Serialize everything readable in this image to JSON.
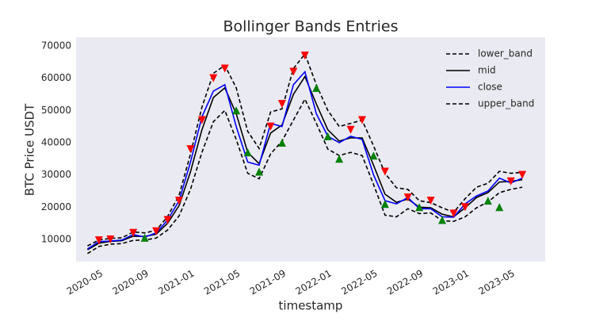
{
  "chart_data": {
    "type": "line",
    "title": "Bollinger Bands Entries",
    "xlabel": "timestamp",
    "ylabel": "BTC Price USDT",
    "x": [
      "2020-04",
      "2020-05",
      "2020-06",
      "2020-07",
      "2020-08",
      "2020-09",
      "2020-10",
      "2020-11",
      "2020-12",
      "2021-01",
      "2021-02",
      "2021-03",
      "2021-04",
      "2021-05",
      "2021-06",
      "2021-07",
      "2021-08",
      "2021-09",
      "2021-10",
      "2021-11",
      "2021-12",
      "2022-01",
      "2022-02",
      "2022-03",
      "2022-04",
      "2022-05",
      "2022-06",
      "2022-07",
      "2022-08",
      "2022-09",
      "2022-10",
      "2022-11",
      "2022-12",
      "2023-01",
      "2023-02",
      "2023-03",
      "2023-04",
      "2023-05",
      "2023-06"
    ],
    "series": [
      {
        "name": "lower_band",
        "color": "#000000",
        "dashed": true,
        "values": [
          5600,
          7800,
          8500,
          8700,
          9700,
          9800,
          10400,
          12900,
          17300,
          25500,
          37000,
          46500,
          50000,
          41000,
          30500,
          28800,
          36500,
          40500,
          47000,
          53500,
          46000,
          38000,
          36000,
          37000,
          36000,
          27000,
          17500,
          17000,
          19500,
          18000,
          18200,
          15800,
          15600,
          17000,
          19800,
          21600,
          24500,
          25500,
          26200
        ]
      },
      {
        "name": "mid",
        "color": "#000000",
        "dashed": false,
        "values": [
          6800,
          8800,
          9400,
          9600,
          11000,
          10900,
          11600,
          15000,
          20500,
          31000,
          44000,
          54000,
          57000,
          49000,
          37000,
          33500,
          43000,
          45500,
          55000,
          60500,
          52000,
          44000,
          40500,
          41500,
          41500,
          33000,
          24000,
          21500,
          22500,
          20000,
          19800,
          17800,
          17000,
          19800,
          23000,
          24500,
          27800,
          28000,
          28500
        ]
      },
      {
        "name": "close",
        "color": "#0000ff",
        "dashed": false,
        "values": [
          7000,
          9300,
          9500,
          9800,
          11500,
          10700,
          12000,
          16000,
          22000,
          34000,
          48000,
          56000,
          58000,
          45000,
          34000,
          33000,
          46000,
          45000,
          58000,
          62000,
          49000,
          42000,
          40000,
          42000,
          41000,
          30000,
          22000,
          21000,
          23000,
          19500,
          19500,
          17000,
          16900,
          21000,
          23500,
          25000,
          29000,
          27500,
          29000
        ]
      },
      {
        "name": "upper_band",
        "color": "#000000",
        "dashed": true,
        "values": [
          8000,
          9800,
          10300,
          10500,
          12300,
          12000,
          12800,
          17100,
          23700,
          36500,
          51000,
          61500,
          64000,
          57000,
          43500,
          38200,
          49500,
          50500,
          63000,
          67500,
          58000,
          50000,
          45000,
          46000,
          47000,
          39000,
          30500,
          26000,
          25500,
          22000,
          21400,
          19800,
          18400,
          22600,
          26200,
          27400,
          31100,
          30500,
          30800
        ]
      }
    ],
    "signals": [
      {
        "color": "#ff0000",
        "marker": "v",
        "values": [
          null,
          9700,
          10000,
          null,
          12000,
          null,
          12500,
          16000,
          22000,
          38000,
          47000,
          60000,
          63000,
          null,
          null,
          null,
          45000,
          52000,
          62000,
          67000,
          null,
          null,
          null,
          44000,
          47000,
          null,
          31000,
          null,
          23000,
          null,
          22000,
          null,
          18000,
          20000,
          null,
          null,
          null,
          28000,
          30000
        ]
      },
      {
        "color": "#008000",
        "marker": "^",
        "values": [
          null,
          null,
          null,
          null,
          null,
          10500,
          null,
          null,
          null,
          null,
          null,
          null,
          null,
          50000,
          37000,
          31000,
          null,
          40000,
          null,
          null,
          57000,
          42000,
          35000,
          null,
          null,
          36000,
          21000,
          null,
          null,
          20000,
          null,
          16000,
          null,
          null,
          null,
          22000,
          20000,
          null,
          null
        ]
      }
    ],
    "xlim": [
      "2020-03",
      "2023-08"
    ],
    "xticks": [
      "2020-05",
      "2020-09",
      "2021-01",
      "2021-05",
      "2021-09",
      "2022-01",
      "2022-05",
      "2022-09",
      "2023-01",
      "2023-05"
    ],
    "ylim": [
      3100,
      72700
    ],
    "yticks": [
      10000,
      20000,
      30000,
      40000,
      50000,
      60000,
      70000
    ],
    "grid": false,
    "legend": "upper right",
    "background": "#eaeaf2"
  }
}
